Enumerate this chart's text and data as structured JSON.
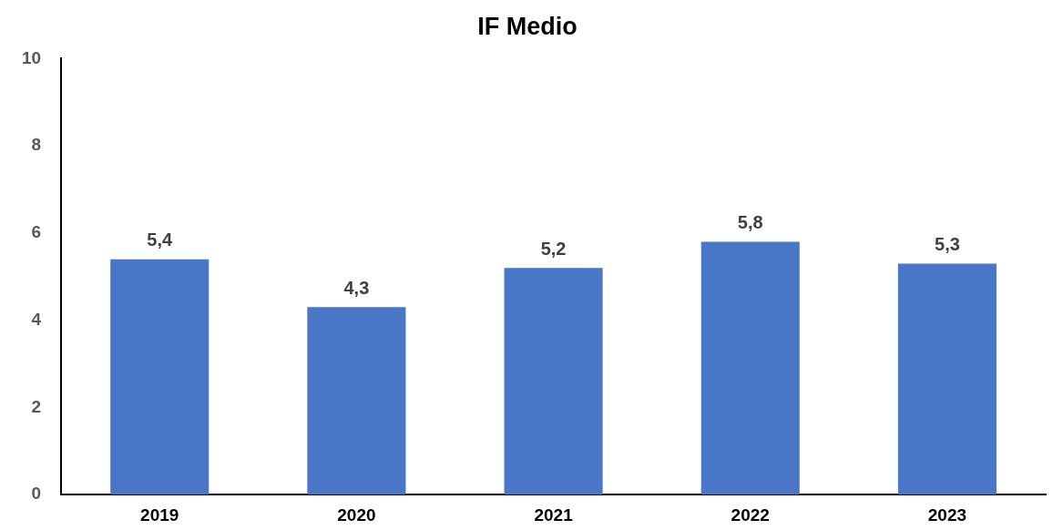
{
  "chart_data": {
    "type": "bar",
    "title": "IF Medio",
    "categories": [
      "2019",
      "2020",
      "2021",
      "2022",
      "2023"
    ],
    "values": [
      5.4,
      4.3,
      5.2,
      5.8,
      5.3
    ],
    "value_labels": [
      "5,4",
      "4,3",
      "5,2",
      "5,8",
      "5,3"
    ],
    "color": "#4a76c8",
    "ylim": [
      0,
      10
    ],
    "yticks": [
      0,
      2,
      4,
      6,
      8,
      10
    ],
    "grid": false,
    "legend": false
  }
}
